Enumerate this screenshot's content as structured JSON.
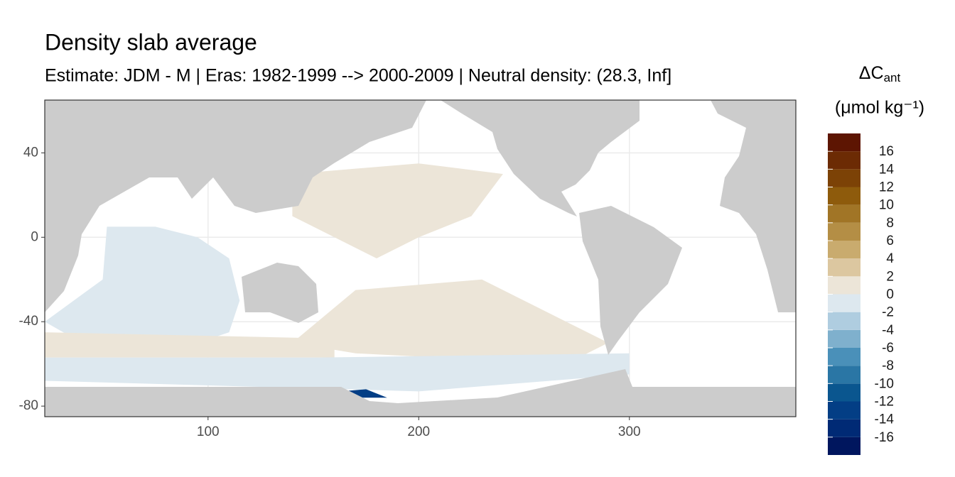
{
  "chart_data": {
    "type": "map",
    "title": "Density slab average",
    "subtitle": "Estimate: JDM - M | Eras: 1982-1999 --> 2000-2009 | Neutral density: (28.3, Inf]",
    "xlim": [
      22.5,
      379
    ],
    "ylim": [
      -85,
      65
    ],
    "xticks": [
      100,
      200,
      300
    ],
    "yticks": [
      40,
      0,
      -40,
      -80
    ],
    "grid": true,
    "regions": [
      {
        "value": -1,
        "lon": [
          52,
          75,
          95,
          110,
          115,
          110,
          80,
          40,
          22.5,
          50
        ],
        "lat": [
          5,
          5,
          0,
          -10,
          -30,
          -45,
          -55,
          -50,
          -40,
          -20
        ]
      },
      {
        "value": 1,
        "lon": [
          140,
          200,
          240,
          225,
          200,
          180,
          160,
          140
        ],
        "lat": [
          30,
          35,
          30,
          10,
          0,
          -10,
          0,
          10
        ]
      },
      {
        "value": 1,
        "lon": [
          170,
          230,
          270,
          290,
          270,
          170,
          140
        ],
        "lat": [
          -25,
          -20,
          -40,
          -50,
          -60,
          -55,
          -50
        ]
      },
      {
        "value": 1,
        "lon": [
          22.5,
          160,
          160,
          22.5
        ],
        "lat": [
          -45,
          -48,
          -57,
          -57
        ]
      },
      {
        "value": -1,
        "lon": [
          22.5,
          150,
          300,
          300,
          200,
          22.5
        ],
        "lat": [
          -57,
          -57,
          -55,
          -65,
          -73,
          -68
        ]
      },
      {
        "value": -14,
        "lon": [
          163,
          175,
          185,
          163
        ],
        "lat": [
          -73,
          -72,
          -76,
          -76
        ]
      }
    ],
    "legend": {
      "title": "ΔC",
      "title_subscript": "ant",
      "unit": "(μmol kg⁻¹)",
      "limits": [
        -18,
        18
      ],
      "ticks": [
        16,
        14,
        12,
        10,
        8,
        6,
        4,
        2,
        0,
        -2,
        -4,
        -6,
        -8,
        -10,
        -12,
        -14,
        -16
      ],
      "colors": [
        "#00165e",
        "#002a75",
        "#033e85",
        "#0a568f",
        "#2a76a5",
        "#4a90b9",
        "#7fb0cd",
        "#afcde0",
        "#dde8ef",
        "#ece5d8",
        "#dcc7a0",
        "#c9ab6e",
        "#b48e45",
        "#a17526",
        "#8e5b0c",
        "#7c4206",
        "#6c2b04",
        "#5d1502"
      ]
    }
  }
}
